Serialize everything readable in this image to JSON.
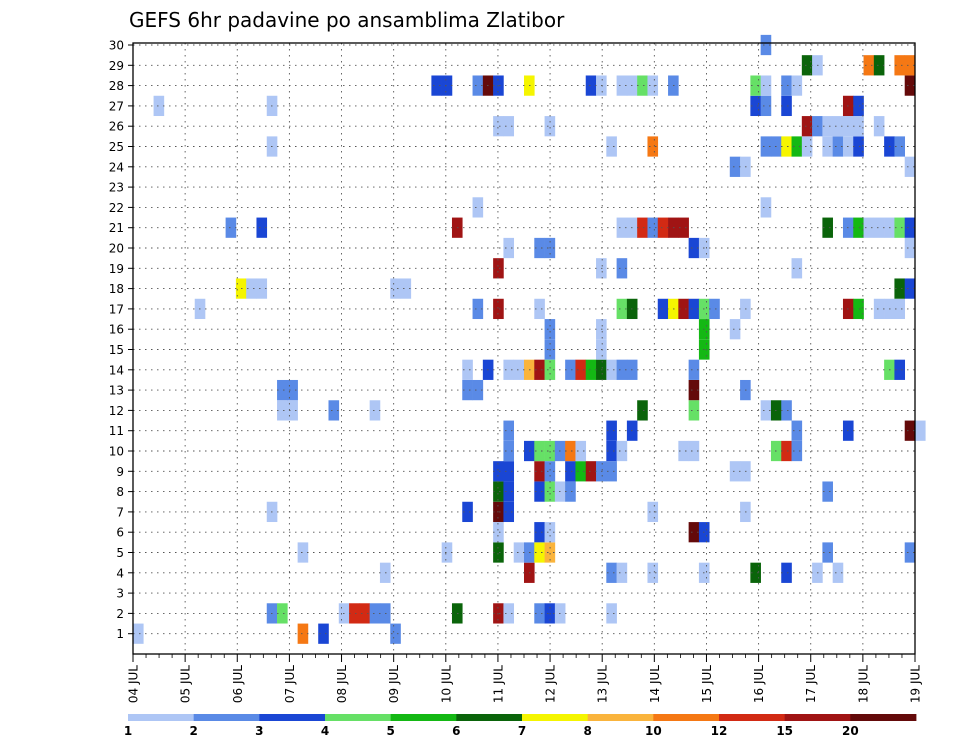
{
  "chart_data": {
    "type": "heatmap",
    "title": "GEFS 6hr padavine po ansamblima Zlatibor",
    "xlabel": "",
    "ylabel": "",
    "x_ticks": [
      "04 JUL",
      "05 JUL",
      "06 JUL",
      "07 JUL",
      "08 JUL",
      "09 JUL",
      "10 JUL",
      "11 JUL",
      "12 JUL",
      "13 JUL",
      "14 JUL",
      "15 JUL",
      "16 JUL",
      "17 JUL",
      "18 JUL",
      "19 JUL"
    ],
    "x_step_hours": 6,
    "x_range": [
      "04 JUL 00",
      "19 JUL 00"
    ],
    "y_ticks": [
      "1",
      "2",
      "3",
      "4",
      "5",
      "6",
      "7",
      "8",
      "9",
      "10",
      "11",
      "12",
      "13",
      "14",
      "15",
      "16",
      "17",
      "18",
      "19",
      "20",
      "21",
      "22",
      "23",
      "24",
      "25",
      "26",
      "27",
      "28",
      "29",
      "30"
    ],
    "grid": "dotted",
    "legend_placement": "bottom",
    "colorbar": {
      "labels": [
        "1",
        "2",
        "3",
        "4",
        "5",
        "6",
        "7",
        "8",
        "10",
        "12",
        "15",
        "20"
      ],
      "colors": [
        "#aec6f5",
        "#5a8ae6",
        "#1a46d4",
        "#66e066",
        "#14b814",
        "#0a640a",
        "#f5f500",
        "#fab43c",
        "#f57814",
        "#d22a14",
        "#a01414",
        "#640a0a"
      ]
    },
    "cells": [
      [
        0,
        0,
        1
      ],
      [
        25,
        0,
        2
      ],
      [
        16,
        0,
        9
      ],
      [
        18,
        0,
        3
      ],
      [
        13,
        1,
        2
      ],
      [
        14,
        1,
        4
      ],
      [
        20,
        1,
        1
      ],
      [
        21,
        1,
        10
      ],
      [
        22,
        1,
        10
      ],
      [
        23,
        1,
        2
      ],
      [
        24,
        1,
        2
      ],
      [
        31,
        1,
        6
      ],
      [
        35,
        1,
        11
      ],
      [
        36,
        1,
        1
      ],
      [
        39,
        1,
        2
      ],
      [
        40,
        1,
        3
      ],
      [
        41,
        1,
        1
      ],
      [
        46,
        1,
        1
      ],
      [
        24,
        3,
        1
      ],
      [
        38,
        3,
        11
      ],
      [
        46,
        3,
        2
      ],
      [
        47,
        3,
        1
      ],
      [
        50,
        3,
        1
      ],
      [
        55,
        3,
        1
      ],
      [
        60,
        3,
        6
      ],
      [
        63,
        3,
        3
      ],
      [
        66,
        3,
        1
      ],
      [
        68,
        3,
        1
      ],
      [
        16,
        4,
        1
      ],
      [
        30,
        4,
        1
      ],
      [
        35,
        4,
        6
      ],
      [
        37,
        4,
        1
      ],
      [
        38,
        4,
        2
      ],
      [
        39,
        4,
        7
      ],
      [
        40,
        4,
        8
      ],
      [
        67,
        4,
        2
      ],
      [
        75,
        4,
        2
      ],
      [
        35,
        5,
        1
      ],
      [
        39,
        5,
        3
      ],
      [
        40,
        5,
        1
      ],
      [
        54,
        5,
        12
      ],
      [
        55,
        5,
        3
      ],
      [
        13,
        6,
        1
      ],
      [
        32,
        6,
        3
      ],
      [
        35,
        6,
        12
      ],
      [
        36,
        6,
        3
      ],
      [
        50,
        6,
        1
      ],
      [
        59,
        6,
        1
      ],
      [
        35,
        7,
        6
      ],
      [
        36,
        7,
        3
      ],
      [
        39,
        7,
        3
      ],
      [
        40,
        7,
        4
      ],
      [
        41,
        7,
        1
      ],
      [
        42,
        7,
        2
      ],
      [
        67,
        7,
        2
      ],
      [
        35,
        8,
        3
      ],
      [
        36,
        8,
        3
      ],
      [
        39,
        8,
        11
      ],
      [
        40,
        8,
        2
      ],
      [
        42,
        8,
        3
      ],
      [
        43,
        8,
        5
      ],
      [
        44,
        8,
        11
      ],
      [
        45,
        8,
        2
      ],
      [
        46,
        8,
        2
      ],
      [
        58,
        8,
        1
      ],
      [
        59,
        8,
        1
      ],
      [
        36,
        9,
        2
      ],
      [
        38,
        9,
        3
      ],
      [
        39,
        9,
        4
      ],
      [
        40,
        9,
        4
      ],
      [
        41,
        9,
        2
      ],
      [
        42,
        9,
        9
      ],
      [
        43,
        9,
        1
      ],
      [
        46,
        9,
        3
      ],
      [
        47,
        9,
        1
      ],
      [
        53,
        9,
        1
      ],
      [
        54,
        9,
        1
      ],
      [
        62,
        9,
        4
      ],
      [
        63,
        9,
        10
      ],
      [
        64,
        9,
        2
      ],
      [
        36,
        10,
        2
      ],
      [
        46,
        10,
        3
      ],
      [
        48,
        10,
        3
      ],
      [
        64,
        10,
        2
      ],
      [
        69,
        10,
        3
      ],
      [
        75,
        10,
        12
      ],
      [
        76,
        10,
        1
      ],
      [
        14,
        11,
        1
      ],
      [
        15,
        11,
        1
      ],
      [
        19,
        11,
        2
      ],
      [
        23,
        11,
        1
      ],
      [
        49,
        11,
        6
      ],
      [
        54,
        11,
        4
      ],
      [
        61,
        11,
        1
      ],
      [
        62,
        11,
        6
      ],
      [
        63,
        11,
        2
      ],
      [
        14,
        12,
        2
      ],
      [
        15,
        12,
        2
      ],
      [
        32,
        12,
        2
      ],
      [
        33,
        12,
        2
      ],
      [
        54,
        12,
        12
      ],
      [
        59,
        12,
        2
      ],
      [
        32,
        13,
        1
      ],
      [
        34,
        13,
        3
      ],
      [
        36,
        13,
        1
      ],
      [
        37,
        13,
        1
      ],
      [
        38,
        13,
        8
      ],
      [
        39,
        13,
        11
      ],
      [
        40,
        13,
        4
      ],
      [
        42,
        13,
        2
      ],
      [
        43,
        13,
        10
      ],
      [
        44,
        13,
        5
      ],
      [
        45,
        13,
        6
      ],
      [
        46,
        13,
        1
      ],
      [
        47,
        13,
        2
      ],
      [
        48,
        13,
        2
      ],
      [
        54,
        13,
        2
      ],
      [
        73,
        13,
        4
      ],
      [
        74,
        13,
        3
      ],
      [
        40,
        14,
        2
      ],
      [
        45,
        14,
        1
      ],
      [
        55,
        14,
        5
      ],
      [
        40,
        15,
        2
      ],
      [
        45,
        15,
        1
      ],
      [
        55,
        15,
        5
      ],
      [
        58,
        15,
        1
      ],
      [
        6,
        16,
        1
      ],
      [
        33,
        16,
        2
      ],
      [
        35,
        16,
        11
      ],
      [
        39,
        16,
        1
      ],
      [
        47,
        16,
        4
      ],
      [
        48,
        16,
        6
      ],
      [
        51,
        16,
        3
      ],
      [
        52,
        16,
        7
      ],
      [
        53,
        16,
        11
      ],
      [
        54,
        16,
        3
      ],
      [
        55,
        16,
        4
      ],
      [
        56,
        16,
        2
      ],
      [
        59,
        16,
        1
      ],
      [
        69,
        16,
        11
      ],
      [
        70,
        16,
        5
      ],
      [
        72,
        16,
        1
      ],
      [
        73,
        16,
        1
      ],
      [
        74,
        16,
        1
      ],
      [
        10,
        17,
        7
      ],
      [
        11,
        17,
        1
      ],
      [
        12,
        17,
        1
      ],
      [
        25,
        17,
        1
      ],
      [
        26,
        17,
        1
      ],
      [
        74,
        17,
        6
      ],
      [
        75,
        17,
        3
      ],
      [
        35,
        18,
        11
      ],
      [
        45,
        18,
        1
      ],
      [
        47,
        18,
        2
      ],
      [
        64,
        18,
        1
      ],
      [
        36,
        19,
        1
      ],
      [
        39,
        19,
        2
      ],
      [
        40,
        19,
        2
      ],
      [
        54,
        19,
        3
      ],
      [
        55,
        19,
        1
      ],
      [
        75,
        19,
        1
      ],
      [
        9,
        20,
        2
      ],
      [
        12,
        20,
        3
      ],
      [
        31,
        20,
        11
      ],
      [
        47,
        20,
        1
      ],
      [
        48,
        20,
        1
      ],
      [
        49,
        20,
        10
      ],
      [
        50,
        20,
        2
      ],
      [
        51,
        20,
        10
      ],
      [
        52,
        20,
        11
      ],
      [
        53,
        20,
        11
      ],
      [
        67,
        20,
        6
      ],
      [
        69,
        20,
        2
      ],
      [
        70,
        20,
        5
      ],
      [
        71,
        20,
        1
      ],
      [
        72,
        20,
        1
      ],
      [
        73,
        20,
        1
      ],
      [
        74,
        20,
        4
      ],
      [
        75,
        20,
        3
      ],
      [
        33,
        21,
        1
      ],
      [
        61,
        21,
        1
      ],
      [
        58,
        23,
        2
      ],
      [
        59,
        23,
        1
      ],
      [
        75,
        23,
        1
      ],
      [
        13,
        24,
        1
      ],
      [
        46,
        24,
        1
      ],
      [
        50,
        24,
        9
      ],
      [
        61,
        24,
        2
      ],
      [
        62,
        24,
        2
      ],
      [
        63,
        24,
        7
      ],
      [
        64,
        24,
        5
      ],
      [
        65,
        24,
        1
      ],
      [
        67,
        24,
        1
      ],
      [
        68,
        24,
        2
      ],
      [
        69,
        24,
        1
      ],
      [
        70,
        24,
        3
      ],
      [
        73,
        24,
        3
      ],
      [
        74,
        24,
        2
      ],
      [
        35,
        25,
        1
      ],
      [
        36,
        25,
        1
      ],
      [
        40,
        25,
        1
      ],
      [
        65,
        25,
        11
      ],
      [
        66,
        25,
        2
      ],
      [
        67,
        25,
        1
      ],
      [
        68,
        25,
        1
      ],
      [
        69,
        25,
        1
      ],
      [
        70,
        25,
        1
      ],
      [
        72,
        25,
        1
      ],
      [
        2,
        26,
        1
      ],
      [
        13,
        26,
        1
      ],
      [
        60,
        26,
        3
      ],
      [
        61,
        26,
        2
      ],
      [
        63,
        26,
        3
      ],
      [
        69,
        26,
        11
      ],
      [
        70,
        26,
        3
      ],
      [
        29,
        27,
        3
      ],
      [
        30,
        27,
        3
      ],
      [
        33,
        27,
        2
      ],
      [
        34,
        27,
        12
      ],
      [
        35,
        27,
        3
      ],
      [
        38,
        27,
        7
      ],
      [
        44,
        27,
        3
      ],
      [
        45,
        27,
        1
      ],
      [
        47,
        27,
        1
      ],
      [
        48,
        27,
        1
      ],
      [
        49,
        27,
        4
      ],
      [
        50,
        27,
        1
      ],
      [
        52,
        27,
        2
      ],
      [
        60,
        27,
        4
      ],
      [
        61,
        27,
        1
      ],
      [
        63,
        27,
        2
      ],
      [
        64,
        27,
        1
      ],
      [
        75,
        27,
        12
      ],
      [
        65,
        28,
        6
      ],
      [
        66,
        28,
        1
      ],
      [
        71,
        28,
        9
      ],
      [
        72,
        28,
        6
      ],
      [
        74,
        28,
        9
      ],
      [
        75,
        28,
        9
      ],
      [
        61,
        29,
        2
      ]
    ]
  }
}
